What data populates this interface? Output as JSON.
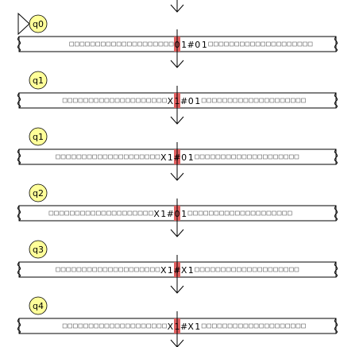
{
  "colors": {
    "state_fill": "#ffff99",
    "head_highlight": "#e06060",
    "tape_border": "#000000",
    "arrow": "#000000"
  },
  "blank_symbol": "□",
  "steps": [
    {
      "state": "q0",
      "initial": true,
      "left_blanks": 20,
      "tape": "01#01",
      "right_blanks": 20,
      "head_index": 0
    },
    {
      "state": "q1",
      "initial": false,
      "left_blanks": 20,
      "tape": "X1#01",
      "right_blanks": 20,
      "head_index": 1
    },
    {
      "state": "q1",
      "initial": false,
      "left_blanks": 20,
      "tape": "X1#01",
      "right_blanks": 20,
      "head_index": 2
    },
    {
      "state": "q2",
      "initial": false,
      "left_blanks": 20,
      "tape": "X1#01",
      "right_blanks": 20,
      "head_index": 3
    },
    {
      "state": "q3",
      "initial": false,
      "left_blanks": 20,
      "tape": "X1#X1",
      "right_blanks": 20,
      "head_index": 2
    },
    {
      "state": "q4",
      "initial": false,
      "left_blanks": 20,
      "tape": "X1#X1",
      "right_blanks": 20,
      "head_index": 1
    }
  ]
}
